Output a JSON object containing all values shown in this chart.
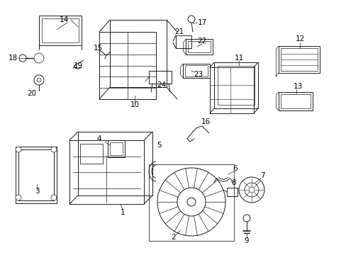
{
  "background_color": "#ffffff",
  "line_color": "#1a1a1a",
  "figsize": [
    4.89,
    3.6
  ],
  "dpi": 100,
  "lw": 0.7
}
